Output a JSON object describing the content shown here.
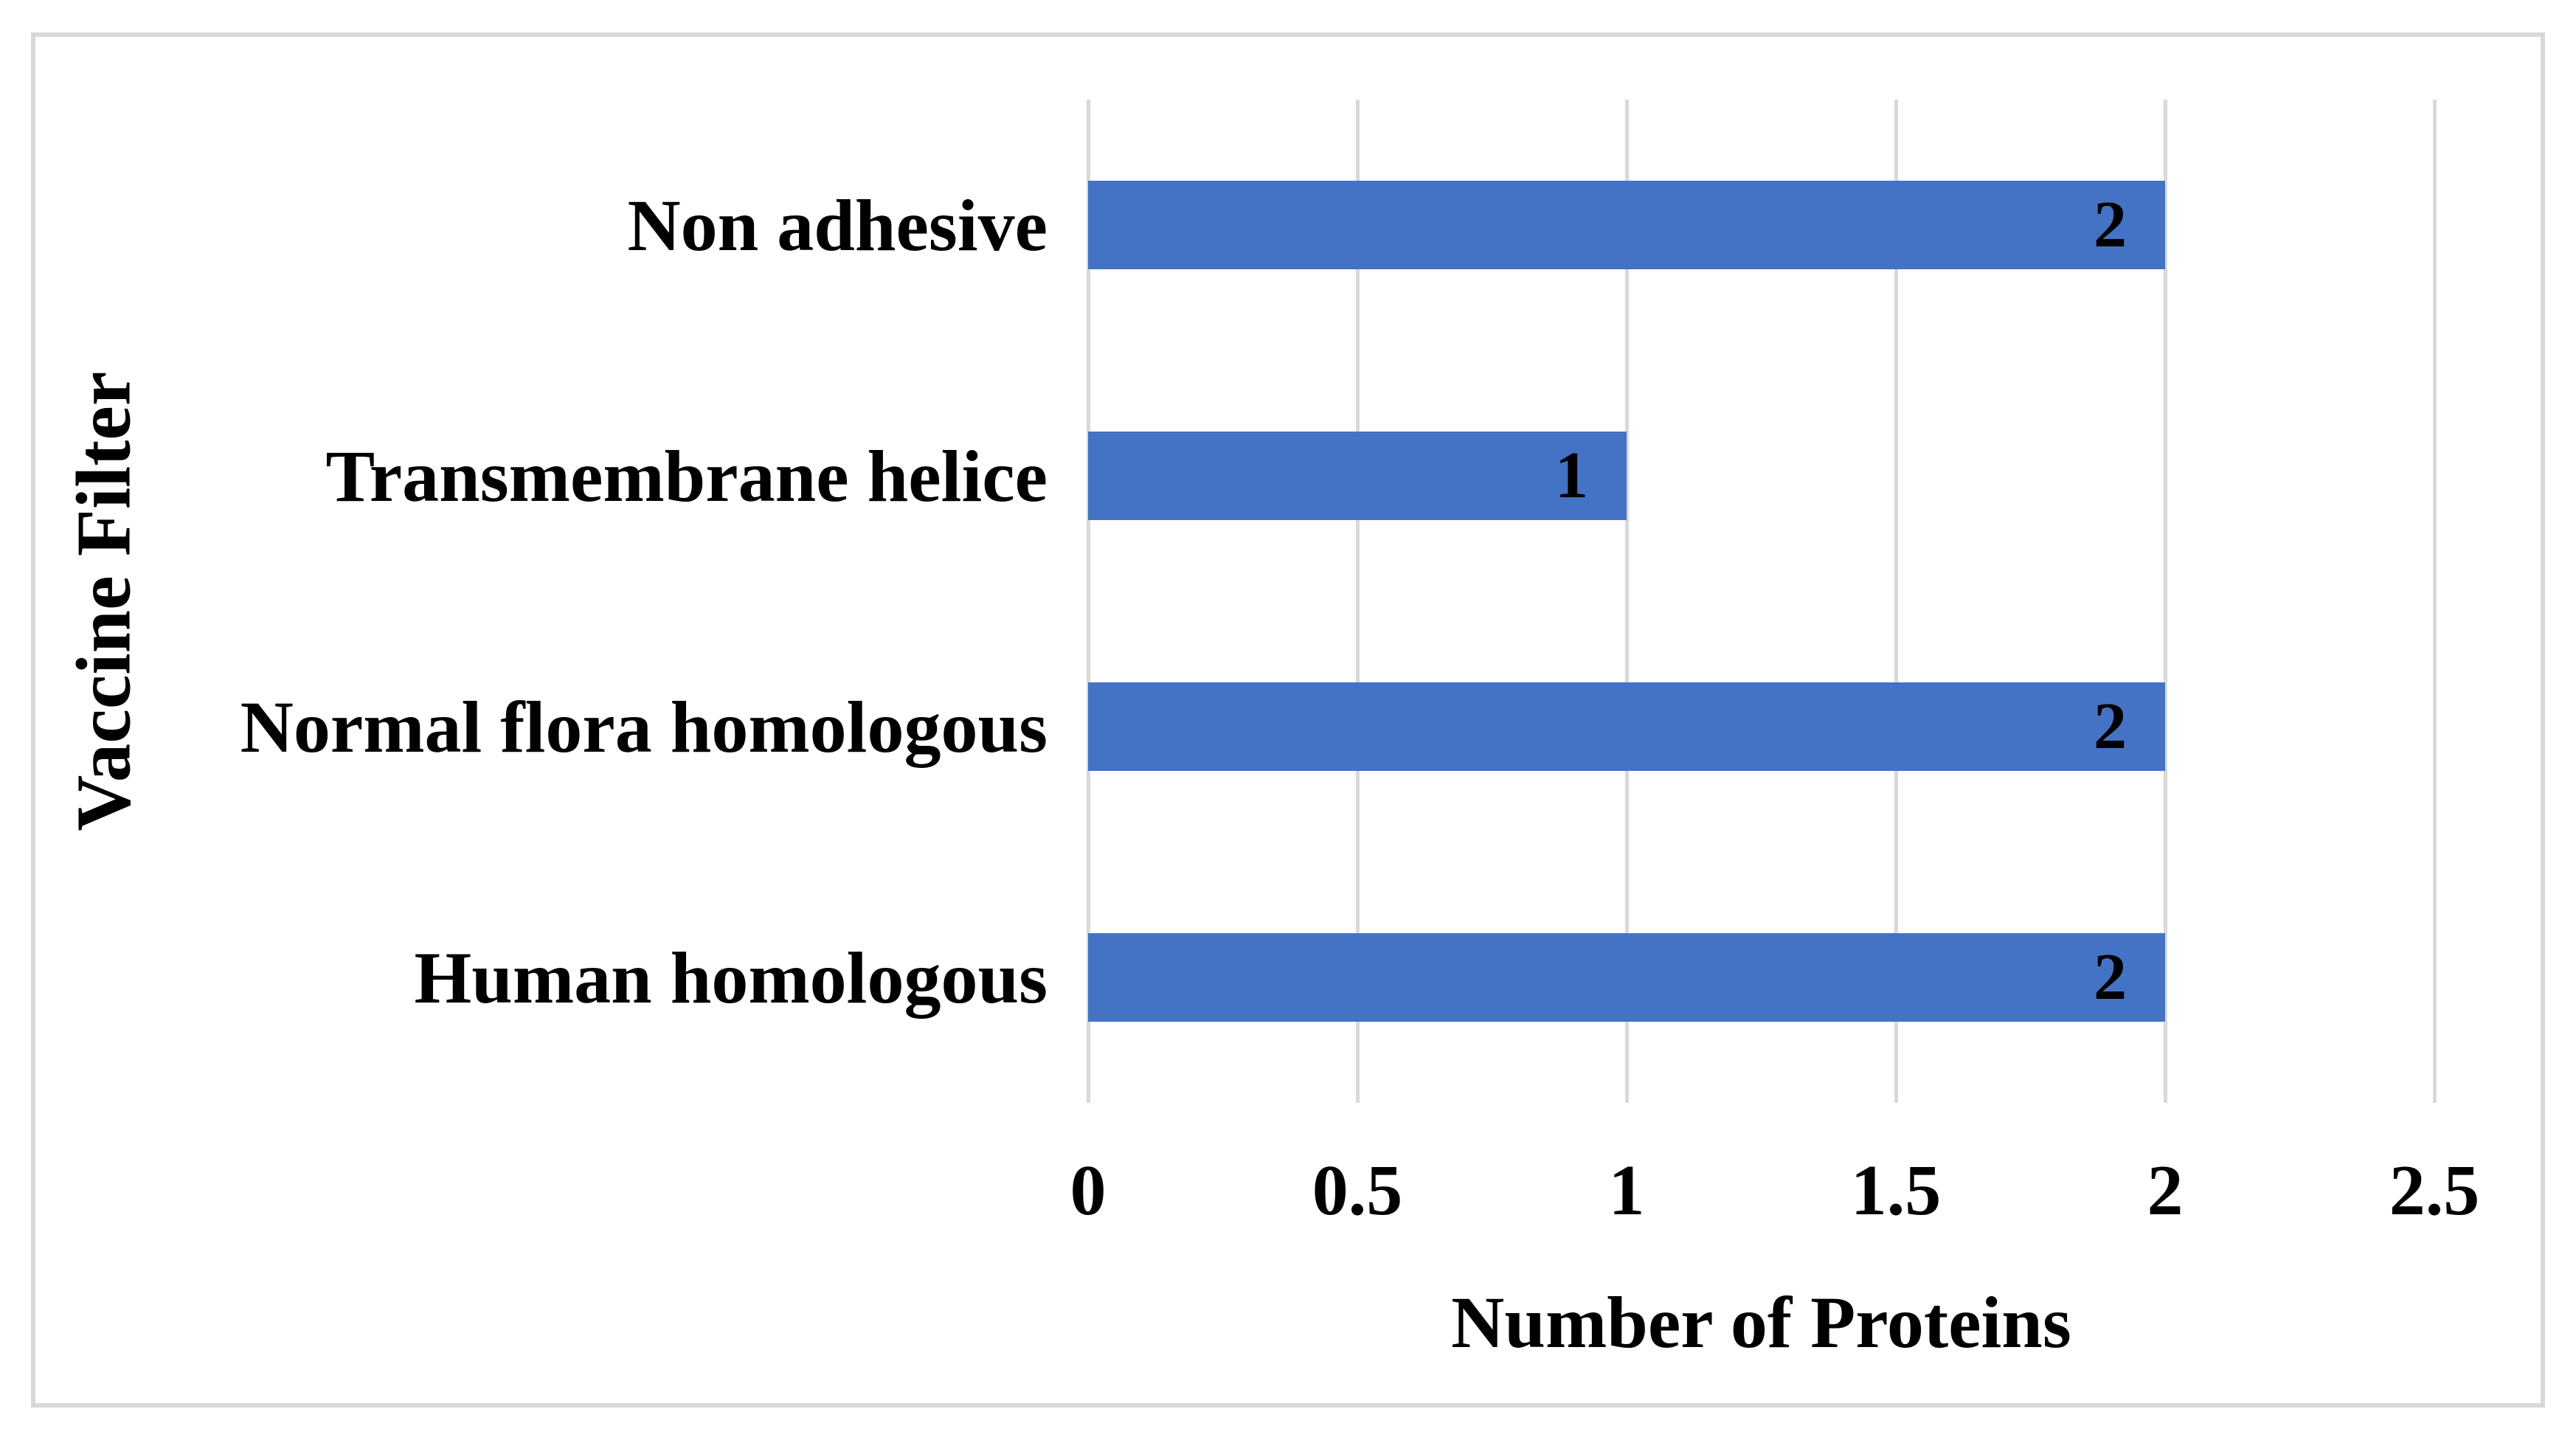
{
  "figure": {
    "background_color": "#FFFFFF",
    "border_color": "#D9D9D9"
  },
  "chart_data": {
    "type": "bar",
    "orientation": "horizontal",
    "categories": [
      "Non adhesive",
      "Transmembrane helice",
      "Normal flora homologous",
      "Human homologous"
    ],
    "values": [
      2,
      1,
      2,
      2
    ],
    "value_labels": [
      "2",
      "1",
      "2",
      "2"
    ],
    "value_label_position": "inside-end",
    "xlabel": "Number of Proteins",
    "ylabel": "Vaccine Filter",
    "xlim": [
      0,
      2.5
    ],
    "xticks": [
      0,
      0.5,
      1,
      1.5,
      2,
      2.5
    ],
    "xtick_labels": [
      "0",
      "0.5",
      "1",
      "1.5",
      "2",
      "2.5"
    ],
    "grid": "vertical-only",
    "gridline_color": "#D9D9D9",
    "bar_color": "#4472C4",
    "text_color": "#000000",
    "legend": "none",
    "title": ""
  }
}
